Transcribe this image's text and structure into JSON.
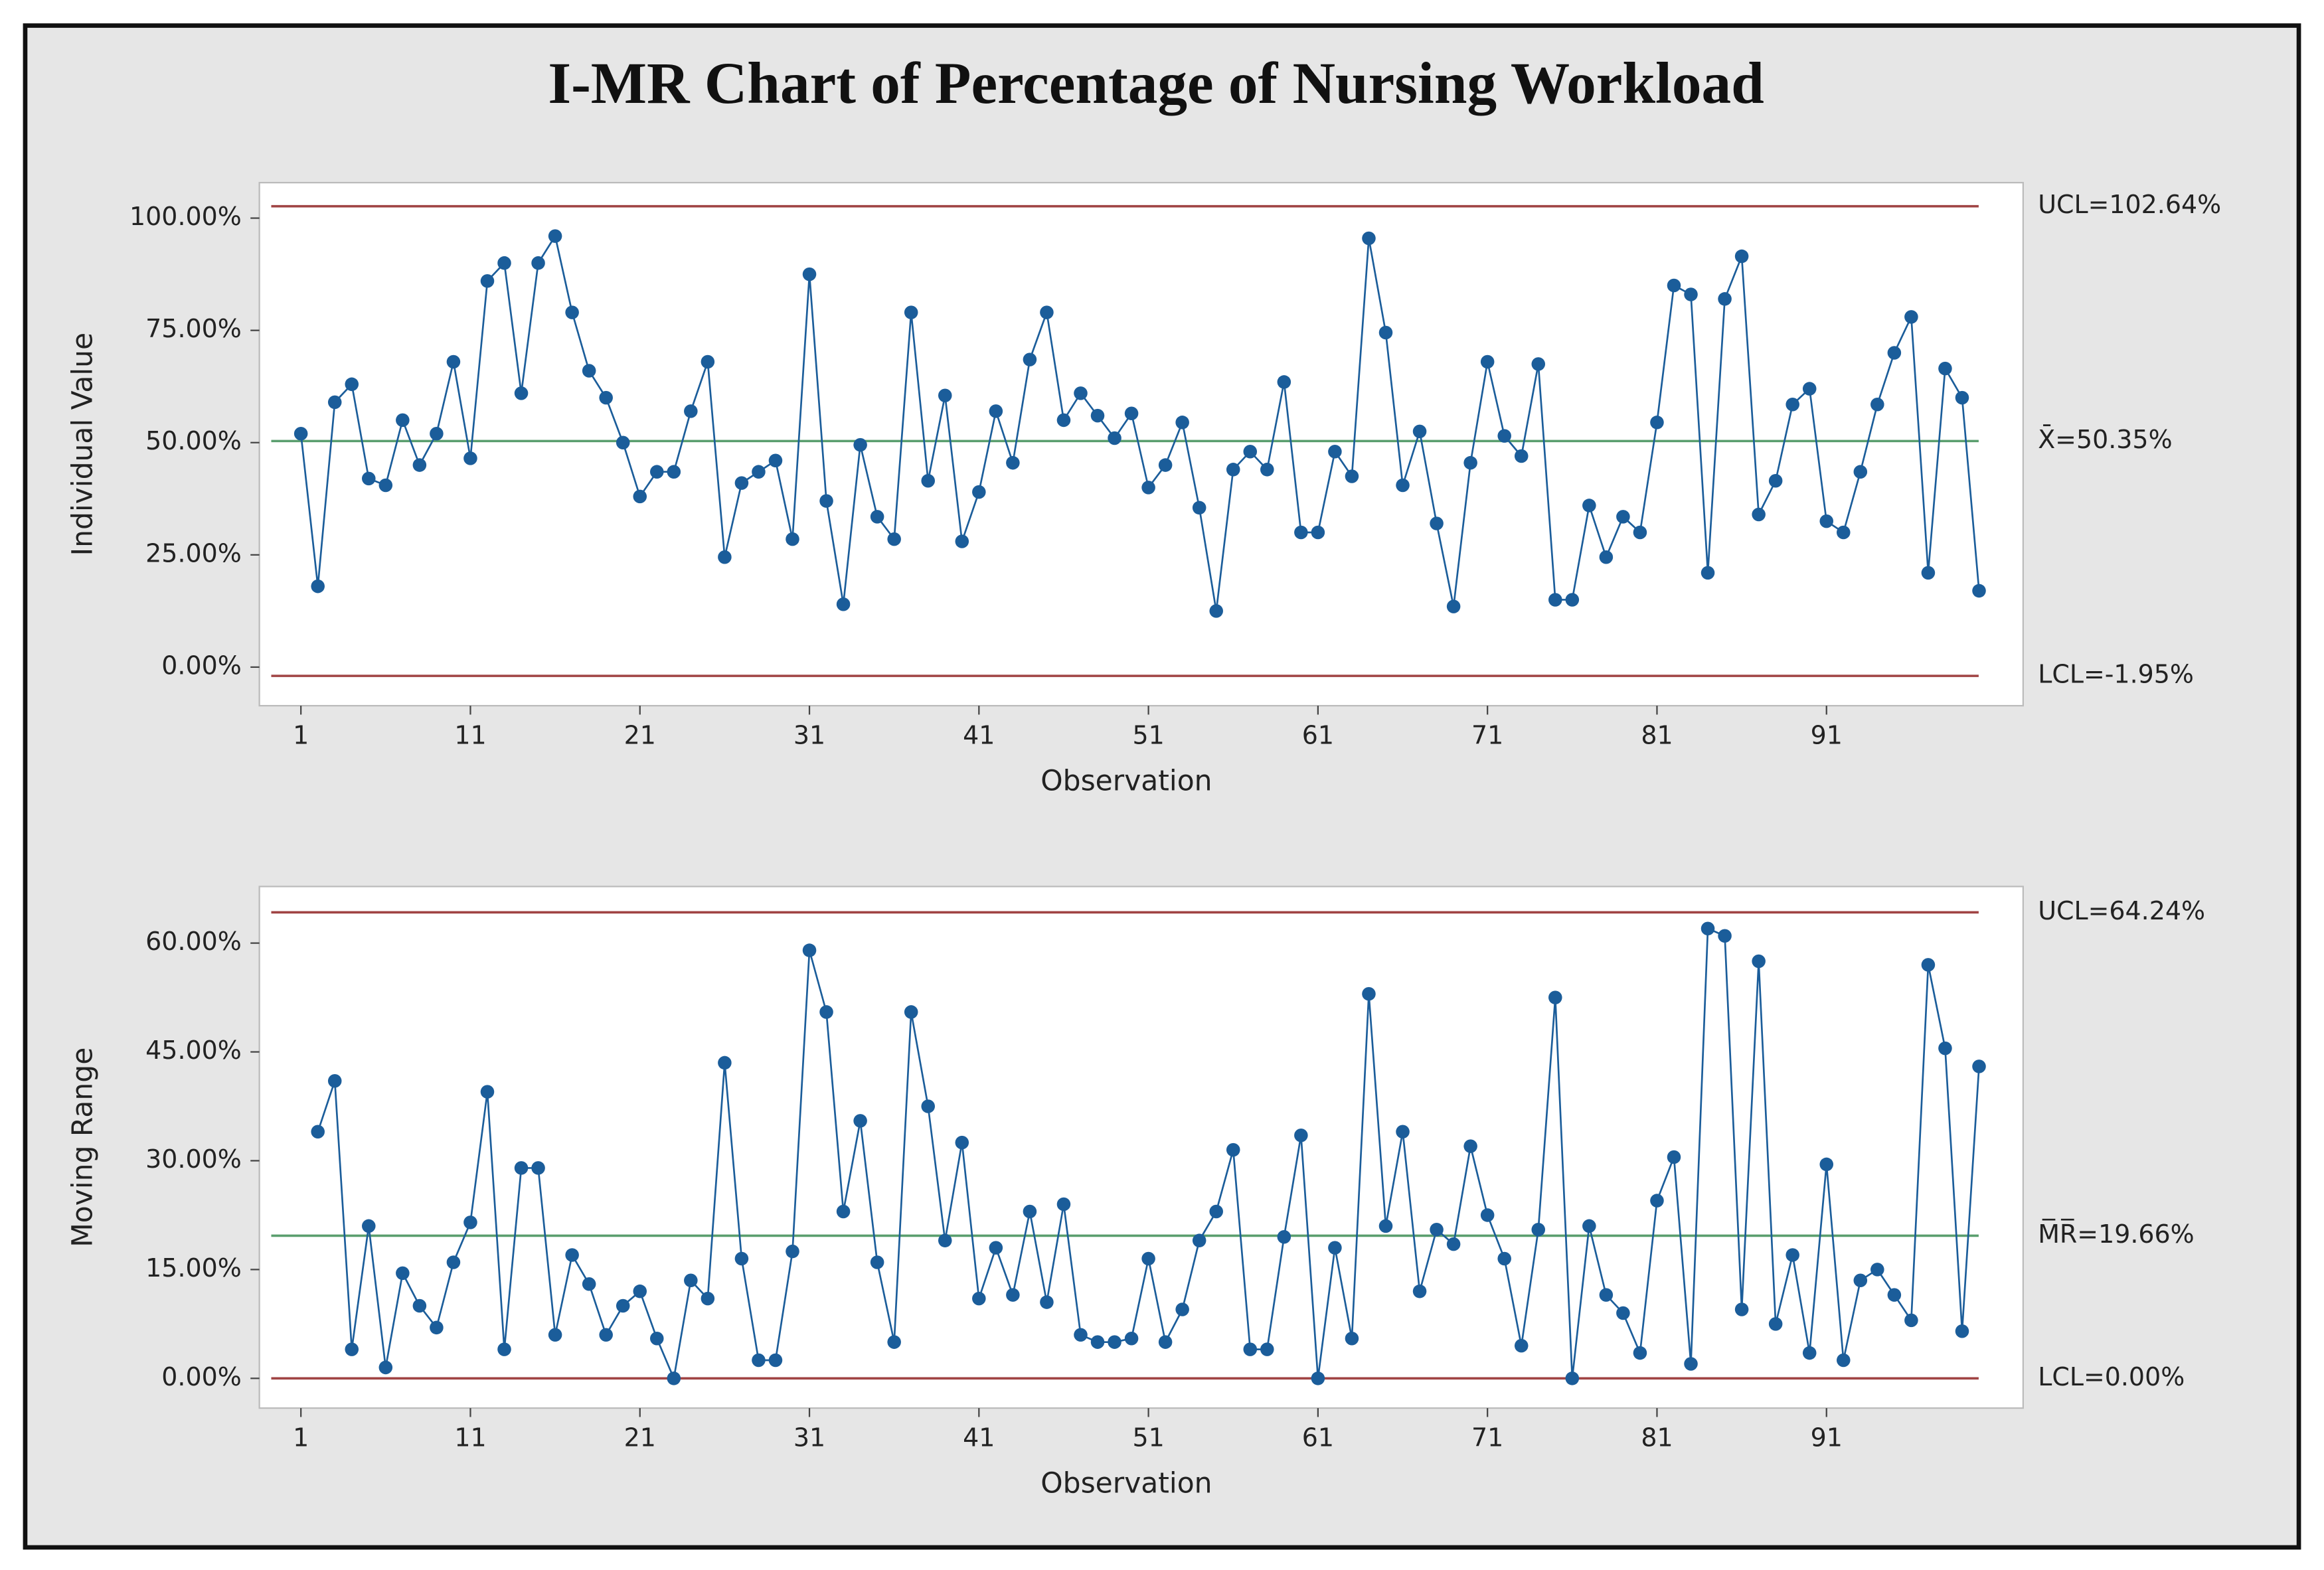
{
  "title": "I-MR Chart of Percentage of Nursing Workload",
  "chart_data": [
    {
      "type": "line",
      "y_label": "Individual Value",
      "x_label": "Observation",
      "x": [
        1,
        2,
        3,
        4,
        5,
        6,
        7,
        8,
        9,
        10,
        11,
        12,
        13,
        14,
        15,
        16,
        17,
        18,
        19,
        20,
        21,
        22,
        23,
        24,
        25,
        26,
        27,
        28,
        29,
        30,
        31,
        32,
        33,
        34,
        35,
        36,
        37,
        38,
        39,
        40,
        41,
        42,
        43,
        44,
        45,
        46,
        47,
        48,
        49,
        50,
        51,
        52,
        53,
        54,
        55,
        56,
        57,
        58,
        59,
        60,
        61,
        62,
        63,
        64,
        65,
        66,
        67,
        68,
        69,
        70,
        71,
        72,
        73,
        74,
        75,
        76,
        77,
        78,
        79,
        80,
        81,
        82,
        83,
        84,
        85,
        86,
        87,
        88,
        89,
        90,
        91,
        92,
        93,
        94,
        95,
        96,
        97,
        98,
        99,
        100
      ],
      "series": [
        {
          "name": "Individual Value",
          "color": "#1b5d9a",
          "values": [
            52,
            18,
            59,
            63,
            42,
            40.5,
            55,
            45,
            52,
            68,
            46.5,
            86,
            90,
            61,
            90,
            96,
            79,
            66,
            60,
            50,
            38,
            43.5,
            43.5,
            57,
            68,
            24.5,
            41,
            43.5,
            46,
            28.5,
            87.5,
            37,
            14,
            49.5,
            33.5,
            28.5,
            79,
            41.5,
            60.5,
            28,
            39,
            57,
            45.5,
            68.5,
            79,
            55,
            61,
            56,
            51,
            56.5,
            40,
            45,
            54.5,
            35.5,
            12.5,
            44,
            48,
            44,
            63.5,
            30,
            30,
            48,
            42.5,
            95.5,
            74.5,
            40.5,
            52.5,
            32,
            13.5,
            45.5,
            68,
            51.5,
            47,
            67.5,
            15,
            15,
            36,
            24.5,
            33.5,
            30,
            54.5,
            85,
            83,
            21,
            82,
            91.5,
            34,
            41.5,
            58.5,
            62,
            32.5,
            30,
            43.5,
            58.5,
            70,
            78,
            21,
            66.5,
            60,
            17
          ]
        }
      ],
      "control_lines": [
        {
          "value": 102.64,
          "label": "UCL=102.64%",
          "color": "#a04444"
        },
        {
          "value": 50.35,
          "label": "X̄=50.35%",
          "color": "#5a9e6e"
        },
        {
          "value": -1.95,
          "label": "LCL=-1.95%",
          "color": "#a04444"
        }
      ],
      "xlim": [
        -1.45,
        102.6
      ],
      "ylim": [
        -8.6,
        107.9
      ],
      "xticks": [
        1,
        11,
        21,
        31,
        41,
        51,
        61,
        71,
        81,
        91
      ],
      "yticks": [
        {
          "value": 0,
          "label": "0.00%"
        },
        {
          "value": 25,
          "label": "25.00%"
        },
        {
          "value": 50,
          "label": "50.00%"
        },
        {
          "value": 75,
          "label": "75.00%"
        },
        {
          "value": 100,
          "label": "100.00%"
        }
      ]
    },
    {
      "type": "line",
      "y_label": "Moving Range",
      "x_label": "Observation",
      "x": [
        1,
        2,
        3,
        4,
        5,
        6,
        7,
        8,
        9,
        10,
        11,
        12,
        13,
        14,
        15,
        16,
        17,
        18,
        19,
        20,
        21,
        22,
        23,
        24,
        25,
        26,
        27,
        28,
        29,
        30,
        31,
        32,
        33,
        34,
        35,
        36,
        37,
        38,
        39,
        40,
        41,
        42,
        43,
        44,
        45,
        46,
        47,
        48,
        49,
        50,
        51,
        52,
        53,
        54,
        55,
        56,
        57,
        58,
        59,
        60,
        61,
        62,
        63,
        64,
        65,
        66,
        67,
        68,
        69,
        70,
        71,
        72,
        73,
        74,
        75,
        76,
        77,
        78,
        79,
        80,
        81,
        82,
        83,
        84,
        85,
        86,
        87,
        88,
        89,
        90,
        91,
        92,
        93,
        94,
        95,
        96,
        97,
        98,
        99,
        100
      ],
      "series": [
        {
          "name": "Moving Range",
          "color": "#1b5d9a",
          "values": [
            null,
            34,
            41,
            4,
            21,
            1.5,
            14.5,
            10,
            7,
            16,
            21.5,
            39.5,
            4,
            29,
            29,
            6,
            17,
            13,
            6,
            10,
            12,
            5.5,
            0,
            13.5,
            11,
            43.5,
            16.5,
            2.5,
            2.5,
            17.5,
            59,
            50.5,
            23,
            35.5,
            16,
            5,
            50.5,
            37.5,
            19,
            32.5,
            11,
            18,
            11.5,
            23,
            10.5,
            24,
            6,
            5,
            5,
            5.5,
            16.5,
            5,
            9.5,
            19,
            23,
            31.5,
            4,
            4,
            19.5,
            33.5,
            0,
            18,
            5.5,
            53,
            21,
            34,
            12,
            20.5,
            18.5,
            32,
            22.5,
            16.5,
            4.5,
            20.5,
            52.5,
            0,
            21,
            11.5,
            9,
            3.5,
            24.5,
            30.5,
            2,
            62,
            61,
            9.5,
            57.5,
            7.5,
            17,
            3.5,
            29.5,
            2.5,
            13.5,
            15,
            11.5,
            8,
            57,
            45.5,
            6.5,
            43
          ]
        }
      ],
      "control_lines": [
        {
          "value": 64.24,
          "label": "UCL=64.24%",
          "color": "#a04444"
        },
        {
          "value": 19.66,
          "label": "M̅R̅=19.66%",
          "color": "#5a9e6e"
        },
        {
          "value": 0,
          "label": "LCL=0.00%",
          "color": "#a04444"
        }
      ],
      "xlim": [
        -1.45,
        102.6
      ],
      "ylim": [
        -4.1,
        67.8
      ],
      "xticks": [
        1,
        11,
        21,
        31,
        41,
        51,
        61,
        71,
        81,
        91
      ],
      "yticks": [
        {
          "value": 0,
          "label": "0.00%"
        },
        {
          "value": 15,
          "label": "15.00%"
        },
        {
          "value": 30,
          "label": "30.00%"
        },
        {
          "value": 45,
          "label": "45.00%"
        },
        {
          "value": 60,
          "label": "60.00%"
        }
      ]
    }
  ]
}
